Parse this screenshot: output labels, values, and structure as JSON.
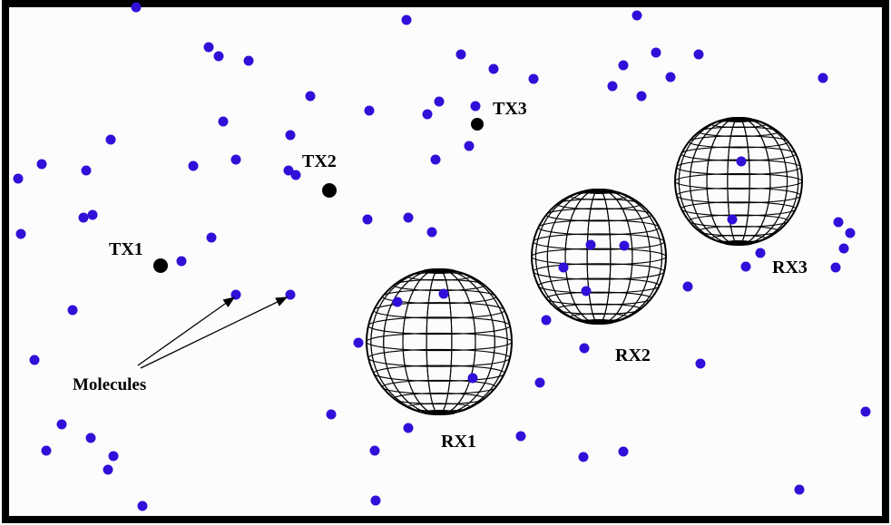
{
  "diagram": {
    "transmitters": [
      {
        "label": "TX1"
      },
      {
        "label": "TX2"
      },
      {
        "label": "TX3"
      }
    ],
    "receivers": [
      {
        "label": "RX1"
      },
      {
        "label": "RX2"
      },
      {
        "label": "RX3"
      }
    ],
    "molecules_label": "Molecules",
    "colors": {
      "molecule": "#3010d8",
      "transmitter": "#000000",
      "receiver_mesh": "#000000",
      "border": "#000000",
      "background": "#fcfcfc"
    }
  }
}
